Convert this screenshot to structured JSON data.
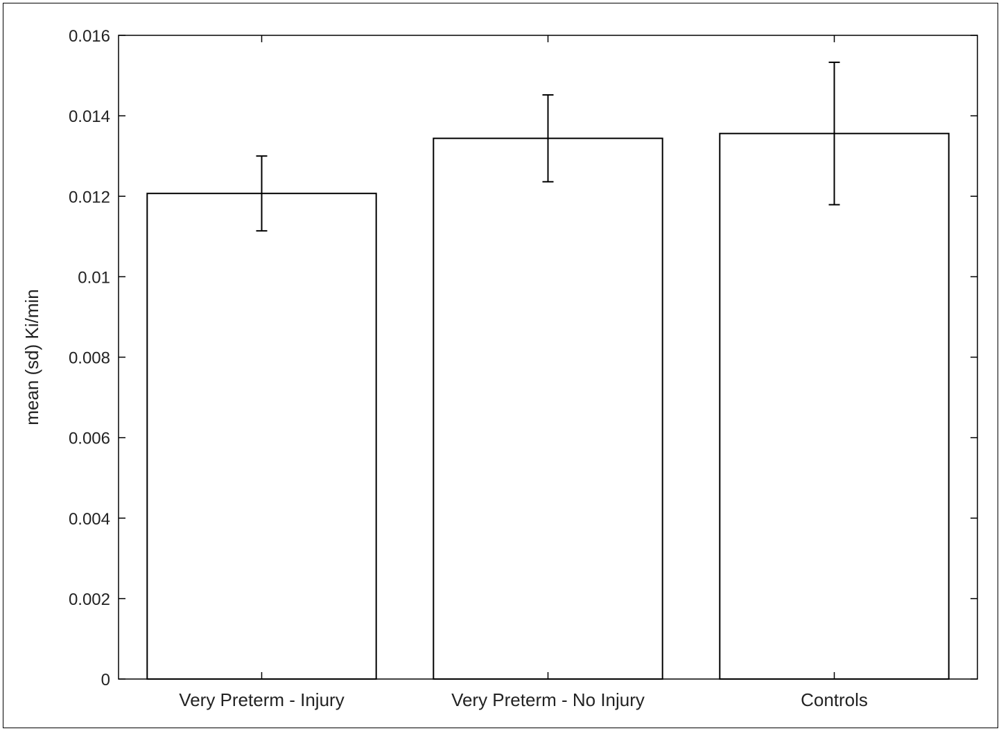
{
  "chart_data": {
    "type": "bar",
    "title": "",
    "xlabel": "",
    "ylabel": "mean (sd) Ki/min",
    "categories": [
      "Very Preterm - Injury",
      "Very Preterm - No Injury",
      "Controls"
    ],
    "values": [
      0.01207,
      0.01344,
      0.01356
    ],
    "error": [
      0.00093,
      0.00108,
      0.00177
    ],
    "ylim": [
      0,
      0.016
    ],
    "yticks": [
      0,
      0.002,
      0.004,
      0.006,
      0.008,
      0.01,
      0.012,
      0.014,
      0.016
    ],
    "ytick_labels": [
      "0",
      "0.002",
      "0.004",
      "0.006",
      "0.008",
      "0.01",
      "0.012",
      "0.014",
      "0.016"
    ],
    "grid": false,
    "legend": "none",
    "bar_fill": "#ffffff",
    "bar_edge": "#000000"
  }
}
